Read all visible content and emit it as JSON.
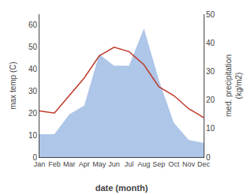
{
  "chart_data": {
    "type": "line",
    "xlabel": "date (month)",
    "ylabel": "max temp (C)",
    "y2label": "med. precipitation\n(kg/m2)",
    "categories": [
      "Jan",
      "Feb",
      "Mar",
      "Apr",
      "May",
      "Jun",
      "Jul",
      "Aug",
      "Sep",
      "Oct",
      "Nov",
      "Dec"
    ],
    "series": [
      {
        "type": "area",
        "axis": "y2",
        "color": "#aec6e8",
        "values": [
          8,
          8,
          15,
          18,
          36,
          32,
          32,
          45,
          27,
          12,
          6,
          5
        ]
      },
      {
        "type": "line",
        "color": "#c0392b",
        "values": [
          21,
          20,
          28,
          36,
          46,
          50,
          48,
          42,
          32,
          28,
          22,
          18
        ]
      }
    ],
    "ylim": [
      0,
      65
    ],
    "yticks": [
      0,
      10,
      20,
      30,
      40,
      50,
      60
    ],
    "y2lim": [
      0,
      50
    ],
    "y2ticks": [
      0,
      10,
      20,
      30,
      40,
      50
    ],
    "grid": false
  }
}
